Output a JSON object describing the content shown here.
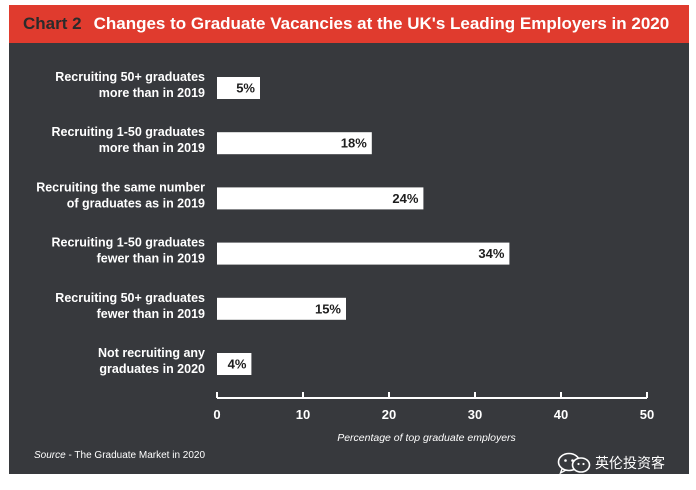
{
  "header": {
    "chart_number": "Chart 2",
    "title": "Changes to Graduate Vacancies at the UK's Leading Employers in 2020"
  },
  "source": {
    "prefix": "Source",
    "separator": " - ",
    "text": "The Graduate Market in 2020"
  },
  "watermark": {
    "text": "英伦投资客",
    "icon": "wechat-logo-icon"
  },
  "colors": {
    "background": "#37393d",
    "header": "#e03b2e",
    "bar": "#ffffff"
  },
  "chart_data": {
    "type": "bar",
    "orientation": "horizontal",
    "title": "Changes to Graduate Vacancies at the UK's Leading Employers in 2020",
    "xlabel": "Percentage of top graduate employers",
    "ylabel": "",
    "xlim": [
      0,
      50
    ],
    "xticks": [
      0,
      10,
      20,
      30,
      40,
      50
    ],
    "grid": false,
    "categories": [
      [
        "Recruiting 50+ graduates",
        "more than in 2019"
      ],
      [
        "Recruiting 1-50 graduates",
        "more than in 2019"
      ],
      [
        "Recruiting the same number",
        "of graduates as in 2019"
      ],
      [
        "Recruiting 1-50 graduates",
        "fewer than in 2019"
      ],
      [
        "Recruiting 50+ graduates",
        "fewer than in 2019"
      ],
      [
        "Not recruiting any",
        "graduates in 2020"
      ]
    ],
    "values": [
      5,
      18,
      24,
      34,
      15,
      4
    ],
    "value_labels": [
      "5%",
      "18%",
      "24%",
      "34%",
      "15%",
      "4%"
    ]
  }
}
